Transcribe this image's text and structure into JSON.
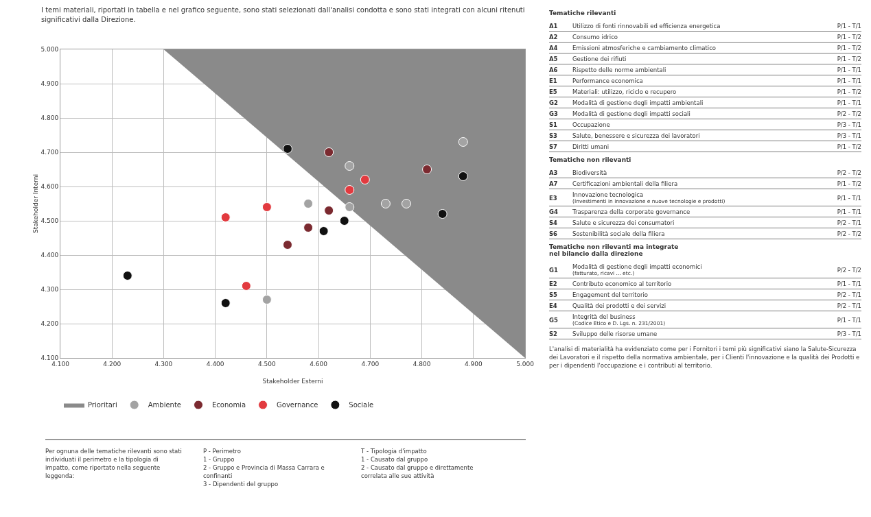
{
  "chart_data": [
    {
      "type": "scatter",
      "title": "I temi materiali, riportati in tabella e nel grafico seguente, sono stati selezionati dall'analisi condotta e sono stati integrati con alcuni ritenuti significativi dalla Direzione.",
      "xlabel": "Stakeholder Esterni",
      "ylabel": "Stakeholder Interni",
      "xlim": [
        4.1,
        5.0
      ],
      "ylim": [
        4.1,
        5.0
      ],
      "xticks": [
        {
          "value": 4.1,
          "label": "4.100"
        },
        {
          "value": 4.2,
          "label": "4.200"
        },
        {
          "value": 4.3,
          "label": "4.300"
        },
        {
          "value": 4.4,
          "label": "4.400"
        },
        {
          "value": 4.5,
          "label": "4.500"
        },
        {
          "value": 4.6,
          "label": "4.600"
        },
        {
          "value": 4.7,
          "label": "4.700"
        },
        {
          "value": 4.8,
          "label": "4.800"
        },
        {
          "value": 4.9,
          "label": "4.900"
        },
        {
          "value": 5.0,
          "label": "5.000"
        }
      ],
      "yticks": [
        {
          "value": 4.1,
          "label": "4.100"
        },
        {
          "value": 4.2,
          "label": "4.200"
        },
        {
          "value": 4.3,
          "label": "4.300"
        },
        {
          "value": 4.4,
          "label": "4.400"
        },
        {
          "value": 4.5,
          "label": "4.500"
        },
        {
          "value": 4.6,
          "label": "4.600"
        },
        {
          "value": 4.7,
          "label": "4.700"
        },
        {
          "value": 4.8,
          "label": "4.800"
        },
        {
          "value": 4.9,
          "label": "4.900"
        },
        {
          "value": 5.0,
          "label": "5.000"
        }
      ],
      "grid": true,
      "legend": "bottom",
      "marker": "circle",
      "series": [
        {
          "name": "Prioritari",
          "type": "area",
          "marker": "none",
          "color": "#8a8a8a",
          "x": [
            4.3,
            5.0
          ],
          "values": [
            5.0,
            4.1
          ]
        },
        {
          "name": "Ambiente",
          "color": "#a3a3a3",
          "x": [
            4.58,
            4.66,
            4.5,
            4.66,
            4.73,
            4.77,
            4.88
          ],
          "values": [
            4.55,
            4.54,
            4.27,
            4.66,
            4.55,
            4.55,
            4.73
          ]
        },
        {
          "name": "Economia",
          "color": "#7b2a30",
          "x": [
            4.62,
            4.81,
            4.62,
            4.58,
            4.54
          ],
          "values": [
            4.7,
            4.65,
            4.53,
            4.48,
            4.43
          ]
        },
        {
          "name": "Governance",
          "color": "#e23a3f",
          "x": [
            4.69,
            4.66,
            4.5,
            4.42,
            4.46
          ],
          "values": [
            4.62,
            4.59,
            4.54,
            4.51,
            4.31
          ]
        },
        {
          "name": "Sociale",
          "color": "#111111",
          "x": [
            4.54,
            4.88,
            4.84,
            4.65,
            4.61,
            4.42,
            4.23
          ],
          "values": [
            4.71,
            4.63,
            4.52,
            4.5,
            4.47,
            4.26,
            4.34
          ]
        }
      ],
      "annotations": [
        "Per ognuna delle tematiche rilevanti sono stati individuati il perimetro e la tipologia di impatto, come riportato nella seguente leggenda:",
        "P - Perimetro\n1 - Gruppo\n2 - Gruppo e Provincia di Massa Carrara e confinanti\n3 - Dipendenti del gruppo",
        "T - Tipologia d'impatto\n1 - Causato dal gruppo\n2 - Causato dal gruppo e direttamente correlata alle sue attività"
      ]
    },
    {
      "type": "other",
      "annotations": [
        "Tematiche rilevanti",
        "A1\tUtilizzo di fonti rinnovabili ed efficienza energetica\tP/1 - T/1",
        "A2\tConsumo idrico\tP/1 - T/2",
        "A4\tEmissioni atmosferiche e cambiamento climatico\tP/1 - T/2",
        "A5\tGestione dei rifiuti\tP/1 - T/2",
        "A6\tRispetto delle norme ambientali\tP/1 - T/1",
        "E1\tPerformance economica\tP/1 - T/1",
        "E5\tMateriali: utilizzo, riciclo e recupero\tP/1 - T/2",
        "G2\tModalità di gestione degli impatti ambientali\tP/1 - T/1",
        "G3\tModalità di gestione degli impatti sociali\tP/2 - T/2",
        "S1\tOccupazione\tP/3 - T/1",
        "S3\tSalute, benessere e sicurezza dei lavoratori\tP/3 - T/1",
        "S7\tDiritti umani\tP/1 - T/2",
        "Tematiche non rilevanti",
        "A3\tBiodiversità\tP/2 - T/2",
        "A7\tCertificazioni ambientali della filiera\tP/1 - T/2",
        "E3\tInnovazione tecnologica\t(Investimenti in innovazione e nuove tecnologie e prodotti)\tP/1 - T/1",
        "G4\tTrasparenza della corporate governance\tP/1 - T/1",
        "S4\tSalute e sicurezza dei consumatori\tP/2 - T/1",
        "S6\tSostenibilità sociale della filiera\tP/2 - T/2",
        "Tematiche non rilevanti ma integrate\nnel bilancio dalla direzione",
        "G1\tModalità di gestione degli impatti economici\t(fatturato, ricavi ... etc.)\tP/2 - T/2",
        "E2\tContributo economico al territorio\tP/1 - T/1",
        "S5\tEngagement del territorio\tP/2 - T/1",
        "E4\tQualità dei prodotti e dei servizi\tP/2 - T/1",
        "G5\tIntegrità del business\t(Codice Etico e D. Lgs. n. 231/2001)\tP/1 - T/1",
        "S2\tSviluppo delle risorse umane\tP/3 - T/1",
        "L'analisi di materialità ha evidenziato come per i Fornitori i temi più significativi siano la Salute-Sicurezza dei Lavoratori e il rispetto della normativa ambientale, per i Clienti l'innovazione e la qualità dei Prodotti e per i dipendenti l'occupazione e i contributi al territorio."
      ]
    }
  ]
}
